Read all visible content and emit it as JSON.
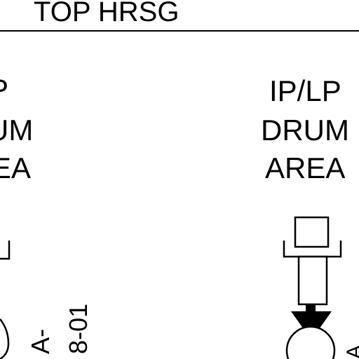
{
  "header": {
    "title": "TOP HRSG"
  },
  "left_area": {
    "line1": "P",
    "line2": "UM",
    "line3": "EA"
  },
  "right_area": {
    "line1": "IP/LP",
    "line2": "DRUM",
    "line3": "AREA"
  },
  "tag": {
    "part1": "A-",
    "part2": "8-01",
    "right_fragment": "A"
  },
  "colors": {
    "ink": "#000000",
    "background": "#ffffff"
  }
}
